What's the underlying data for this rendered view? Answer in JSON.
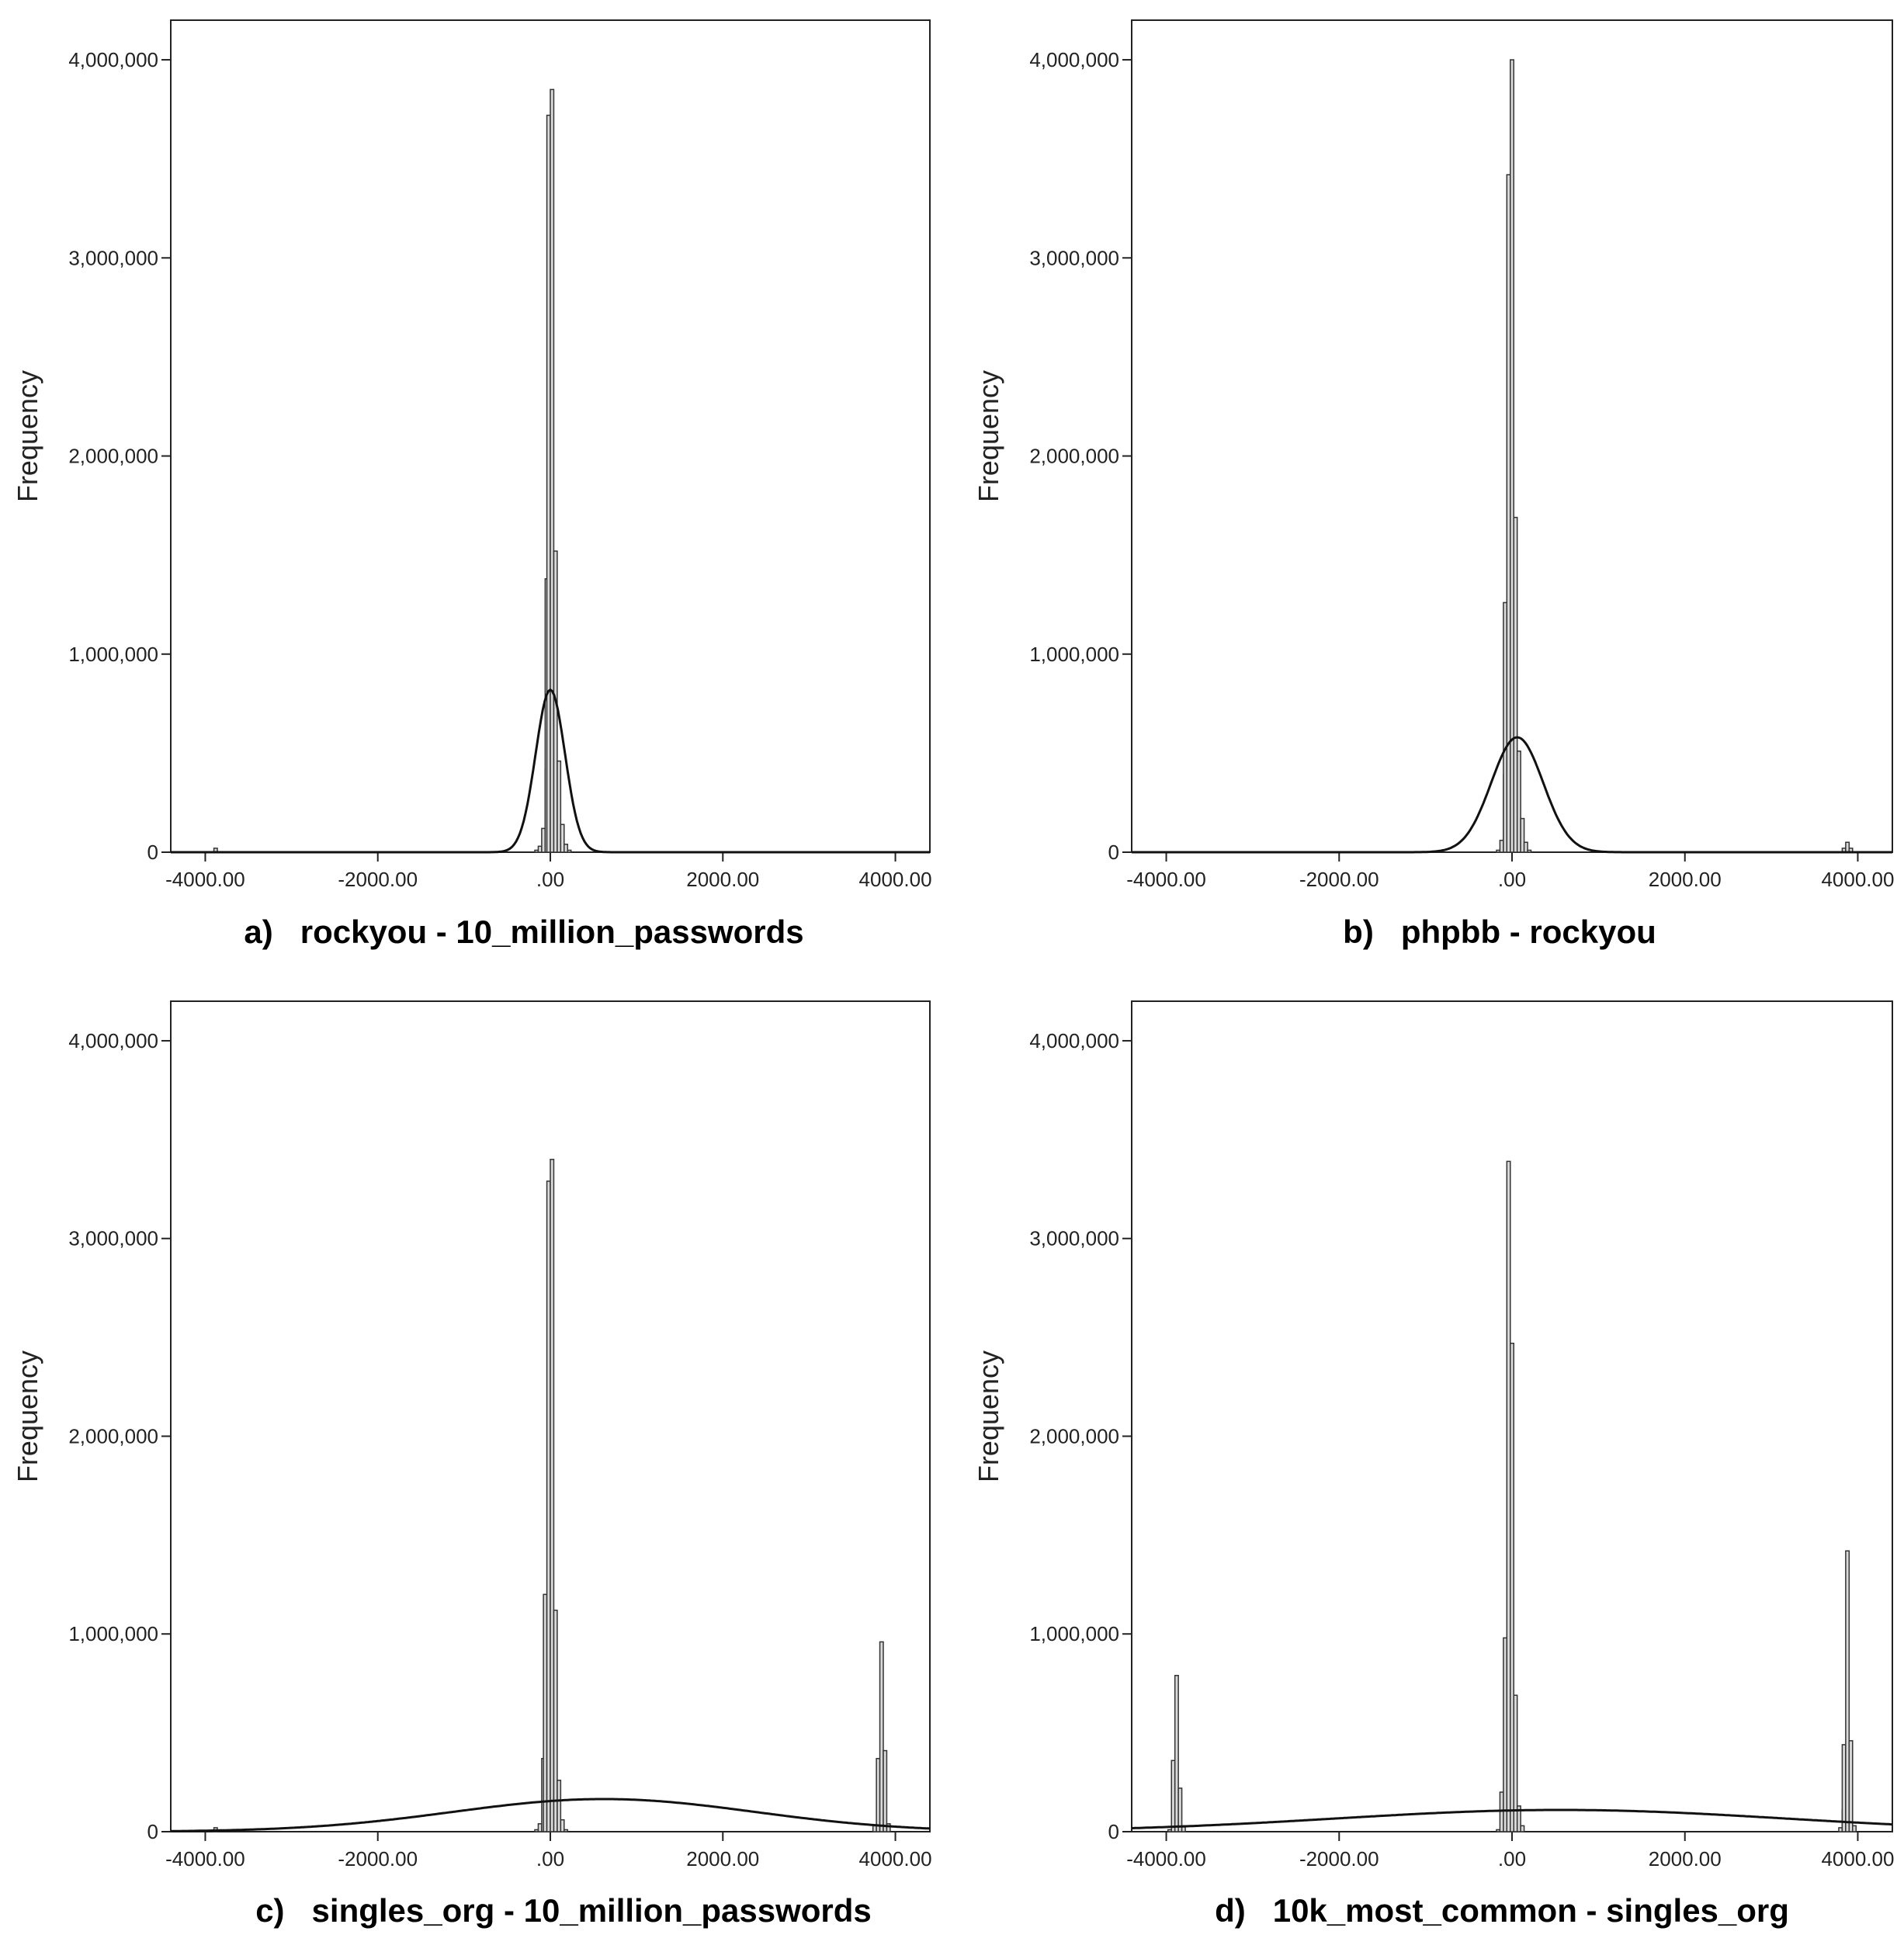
{
  "chart_data": [
    {
      "type": "bar",
      "caption": "a)   rockyou - 10_million_passwords",
      "ylabel": "Frequency",
      "ylim": [
        0,
        4200000
      ],
      "xlim": [
        -4400,
        4400
      ],
      "xticks": [
        -4000,
        -2000,
        0,
        2000,
        4000
      ],
      "xtick_labels": [
        "-4000.00",
        "-2000.00",
        ".00",
        "2000.00",
        "4000.00"
      ],
      "yticks": [
        0,
        1000000,
        2000000,
        3000000,
        4000000
      ],
      "ytick_labels": [
        "0",
        "1,000,000",
        "2,000,000",
        "3,000,000",
        "4,000,000"
      ],
      "bin_width": 40,
      "bins": [
        {
          "x": -3880,
          "y": 20000
        },
        {
          "x": -160,
          "y": 10000
        },
        {
          "x": -120,
          "y": 30000
        },
        {
          "x": -80,
          "y": 120000
        },
        {
          "x": -40,
          "y": 420000
        },
        {
          "x": -40,
          "y": 1380000
        },
        {
          "x": -20,
          "y": 3720000
        },
        {
          "x": 20,
          "y": 3850000
        },
        {
          "x": 60,
          "y": 1520000
        },
        {
          "x": 100,
          "y": 460000
        },
        {
          "x": 140,
          "y": 140000
        },
        {
          "x": 180,
          "y": 40000
        },
        {
          "x": 220,
          "y": 10000
        }
      ],
      "normal_curve": {
        "mean": 0,
        "sd": 170,
        "peak": 820000
      }
    },
    {
      "type": "bar",
      "caption": "b)   phpbb - rockyou",
      "ylabel": "Frequency",
      "ylim": [
        0,
        4200000
      ],
      "xlim": [
        -4400,
        4400
      ],
      "xticks": [
        -4000,
        -2000,
        0,
        2000,
        4000
      ],
      "xtick_labels": [
        "-4000.00",
        "-2000.00",
        ".00",
        "2000.00",
        "4000.00"
      ],
      "yticks": [
        0,
        1000000,
        2000000,
        3000000,
        4000000
      ],
      "ytick_labels": [
        "0",
        "1,000,000",
        "2,000,000",
        "3,000,000",
        "4,000,000"
      ],
      "bin_width": 40,
      "bins": [
        {
          "x": -160,
          "y": 10000
        },
        {
          "x": -120,
          "y": 60000
        },
        {
          "x": -80,
          "y": 390000
        },
        {
          "x": -80,
          "y": 1260000
        },
        {
          "x": -40,
          "y": 3420000
        },
        {
          "x": 0,
          "y": 4000000
        },
        {
          "x": 40,
          "y": 1690000
        },
        {
          "x": 80,
          "y": 510000
        },
        {
          "x": 120,
          "y": 170000
        },
        {
          "x": 160,
          "y": 50000
        },
        {
          "x": 200,
          "y": 10000
        },
        {
          "x": 3840,
          "y": 20000
        },
        {
          "x": 3880,
          "y": 50000
        },
        {
          "x": 3920,
          "y": 20000
        }
      ],
      "normal_curve": {
        "mean": 60,
        "sd": 300,
        "peak": 580000
      }
    },
    {
      "type": "bar",
      "caption": "c)   singles_org - 10_million_passwords",
      "ylabel": "Frequency",
      "ylim": [
        0,
        4200000
      ],
      "xlim": [
        -4400,
        4400
      ],
      "xticks": [
        -4000,
        -2000,
        0,
        2000,
        4000
      ],
      "xtick_labels": [
        "-4000.00",
        "-2000.00",
        ".00",
        "2000.00",
        "4000.00"
      ],
      "yticks": [
        0,
        1000000,
        2000000,
        3000000,
        4000000
      ],
      "ytick_labels": [
        "0",
        "1,000,000",
        "2,000,000",
        "3,000,000",
        "4,000,000"
      ],
      "bin_width": 40,
      "bins": [
        {
          "x": -3880,
          "y": 20000
        },
        {
          "x": -160,
          "y": 10000
        },
        {
          "x": -120,
          "y": 40000
        },
        {
          "x": -80,
          "y": 370000
        },
        {
          "x": -60,
          "y": 1200000
        },
        {
          "x": -20,
          "y": 3290000
        },
        {
          "x": 20,
          "y": 3400000
        },
        {
          "x": 60,
          "y": 1120000
        },
        {
          "x": 100,
          "y": 260000
        },
        {
          "x": 140,
          "y": 60000
        },
        {
          "x": 180,
          "y": 10000
        },
        {
          "x": 3760,
          "y": 30000
        },
        {
          "x": 3800,
          "y": 370000
        },
        {
          "x": 3840,
          "y": 960000
        },
        {
          "x": 3880,
          "y": 410000
        },
        {
          "x": 3920,
          "y": 40000
        }
      ],
      "normal_curve": {
        "mean": 620,
        "sd": 1750,
        "peak": 165000
      }
    },
    {
      "type": "bar",
      "caption": "d)   10k_most_common - singles_org",
      "ylabel": "Frequency",
      "ylim": [
        0,
        4200000
      ],
      "xlim": [
        -4400,
        4400
      ],
      "xticks": [
        -4000,
        -2000,
        0,
        2000,
        4000
      ],
      "xtick_labels": [
        "-4000.00",
        "-2000.00",
        ".00",
        "2000.00",
        "4000.00"
      ],
      "yticks": [
        0,
        1000000,
        2000000,
        3000000,
        4000000
      ],
      "ytick_labels": [
        "0",
        "1,000,000",
        "2,000,000",
        "3,000,000",
        "4,000,000"
      ],
      "bin_width": 40,
      "bins": [
        {
          "x": -3960,
          "y": 10000
        },
        {
          "x": -3920,
          "y": 360000
        },
        {
          "x": -3880,
          "y": 790000
        },
        {
          "x": -3840,
          "y": 220000
        },
        {
          "x": -3800,
          "y": 30000
        },
        {
          "x": -160,
          "y": 10000
        },
        {
          "x": -120,
          "y": 200000
        },
        {
          "x": -80,
          "y": 980000
        },
        {
          "x": -40,
          "y": 3390000
        },
        {
          "x": 0,
          "y": 2470000
        },
        {
          "x": 40,
          "y": 690000
        },
        {
          "x": 80,
          "y": 130000
        },
        {
          "x": 120,
          "y": 30000
        },
        {
          "x": 3800,
          "y": 20000
        },
        {
          "x": 3840,
          "y": 110000
        },
        {
          "x": 3840,
          "y": 440000
        },
        {
          "x": 3880,
          "y": 1420000
        },
        {
          "x": 3920,
          "y": 460000
        },
        {
          "x": 3960,
          "y": 30000
        }
      ],
      "normal_curve": {
        "mean": 560,
        "sd": 2600,
        "peak": 110000
      }
    }
  ]
}
